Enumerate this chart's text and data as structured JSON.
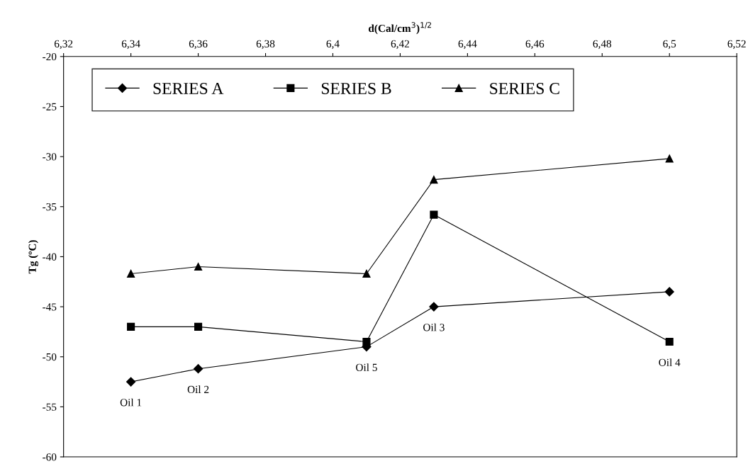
{
  "chart_data": {
    "type": "line",
    "xlabel": "d(Cal/cm$^{3}$)$^{1/2}$",
    "ylabel": "Tg (ºC)",
    "x": [
      6.34,
      6.36,
      6.41,
      6.43,
      6.5
    ],
    "series": [
      {
        "name": "SERIES A",
        "color": "#000000",
        "marker": "diamond",
        "values": [
          -52.5,
          -51.2,
          -49,
          -45,
          -43.5
        ]
      },
      {
        "name": "SERIES B",
        "color": "#000000",
        "marker": "square",
        "values": [
          -47,
          -47,
          -48.5,
          -35.8,
          -48.5
        ]
      },
      {
        "name": "SERIES C",
        "color": "#000000",
        "marker": "triangle",
        "values": [
          -41.7,
          -41,
          -41.7,
          -32.3,
          -30.2
        ]
      }
    ],
    "xlim": [
      6.32,
      6.52
    ],
    "xticks": [
      {
        "value": 6.32,
        "label": "6,32"
      },
      {
        "value": 6.34,
        "label": "6,34"
      },
      {
        "value": 6.36,
        "label": "6,36"
      },
      {
        "value": 6.38,
        "label": "6,38"
      },
      {
        "value": 6.4,
        "label": "6,4"
      },
      {
        "value": 6.42,
        "label": "6,42"
      },
      {
        "value": 6.44,
        "label": "6,44"
      },
      {
        "value": 6.46,
        "label": "6,46"
      },
      {
        "value": 6.48,
        "label": "6,48"
      },
      {
        "value": 6.5,
        "label": "6,5"
      },
      {
        "value": 6.52,
        "label": "6,52"
      }
    ],
    "ylim": [
      -60,
      -20
    ],
    "yticks": [
      -60,
      -55,
      -50,
      -45,
      -40,
      -35,
      -30,
      -25,
      -20
    ],
    "annotations": [
      {
        "text": "Oil 1",
        "x": 6.34,
        "y": -52.5
      },
      {
        "text": "Oil 2",
        "x": 6.36,
        "y": -51.2
      },
      {
        "text": "Oil 5",
        "x": 6.41,
        "y": -49
      },
      {
        "text": "Oil 3",
        "x": 6.43,
        "y": -45
      },
      {
        "text": "Oil 4",
        "x": 6.5,
        "y": -48.5
      }
    ],
    "grid": false,
    "legend": "top",
    "line_style": "solid"
  }
}
